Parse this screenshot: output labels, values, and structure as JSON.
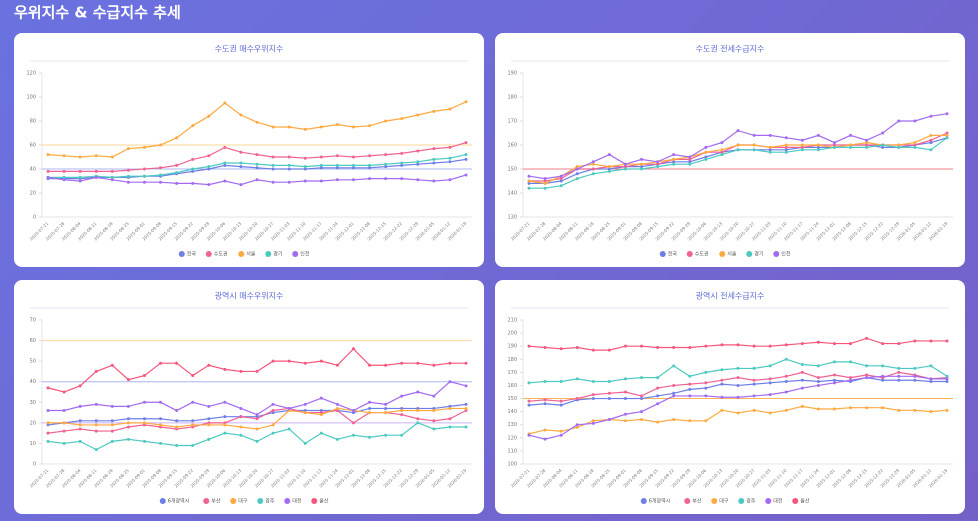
{
  "header": {
    "title": "우위지수 & 수급지수 추세"
  },
  "chart_data": [
    {
      "type": "line",
      "title": "수도권 매수우위지수",
      "categories": [
        "2025-07-21",
        "2025-07-28",
        "2025-08-04",
        "2025-08-11",
        "2025-08-18",
        "2025-08-25",
        "2025-09-01",
        "2025-09-08",
        "2025-09-15",
        "2025-09-22",
        "2025-09-29",
        "2025-10-06",
        "2025-10-13",
        "2025-10-20",
        "2025-10-27",
        "2025-11-03",
        "2025-11-10",
        "2025-11-17",
        "2025-11-24",
        "2025-12-01",
        "2025-12-08",
        "2025-12-15",
        "2025-12-22",
        "2025-12-29",
        "2026-01-05",
        "2026-01-12",
        "2026-01-19"
      ],
      "ylim": [
        0,
        120
      ],
      "yticks": [
        0,
        20,
        40,
        60,
        80,
        100,
        120
      ],
      "reference_lines": [
        {
          "value": 60,
          "color": "#ffd596"
        },
        {
          "value": 40,
          "color": "#a9b6f2"
        }
      ],
      "series": [
        {
          "name": "전국",
          "color": "#6d7fe6",
          "values": [
            32,
            32,
            32,
            33,
            33,
            33,
            34,
            34,
            36,
            38,
            40,
            43,
            42,
            41,
            40,
            40,
            40,
            41,
            41,
            41,
            41,
            42,
            43,
            44,
            45,
            46,
            48
          ]
        },
        {
          "name": "수도권",
          "color": "#f06292",
          "values": [
            38,
            38,
            38,
            38,
            38,
            39,
            40,
            41,
            43,
            48,
            51,
            58,
            54,
            52,
            50,
            50,
            49,
            50,
            51,
            50,
            51,
            52,
            53,
            55,
            57,
            58,
            62
          ]
        },
        {
          "name": "서울",
          "color": "#ffa940",
          "values": [
            52,
            51,
            50,
            51,
            50,
            57,
            58,
            60,
            66,
            76,
            84,
            95,
            85,
            79,
            75,
            75,
            73,
            75,
            77,
            75,
            76,
            80,
            82,
            85,
            88,
            90,
            96
          ]
        },
        {
          "name": "경기",
          "color": "#4cc9c0",
          "values": [
            33,
            33,
            33,
            34,
            33,
            34,
            34,
            35,
            37,
            40,
            42,
            45,
            45,
            44,
            43,
            43,
            42,
            43,
            43,
            43,
            43,
            44,
            45,
            46,
            48,
            49,
            52
          ]
        },
        {
          "name": "인천",
          "color": "#a26bf0",
          "values": [
            33,
            31,
            30,
            33,
            31,
            29,
            29,
            29,
            28,
            28,
            27,
            30,
            27,
            31,
            29,
            29,
            30,
            30,
            31,
            31,
            32,
            32,
            32,
            31,
            30,
            31,
            35
          ]
        }
      ]
    },
    {
      "type": "line",
      "title": "수도권 전세수급지수",
      "categories": [
        "2025-07-21",
        "2025-07-28",
        "2025-08-04",
        "2025-08-11",
        "2025-08-18",
        "2025-08-25",
        "2025-09-01",
        "2025-09-08",
        "2025-09-15",
        "2025-09-22",
        "2025-09-29",
        "2025-10-06",
        "2025-10-13",
        "2025-10-20",
        "2025-10-27",
        "2025-11-03",
        "2025-11-10",
        "2025-11-17",
        "2025-11-24",
        "2025-12-01",
        "2025-12-08",
        "2025-12-15",
        "2025-12-22",
        "2025-12-29",
        "2026-01-05",
        "2026-01-12",
        "2026-01-19"
      ],
      "ylim": [
        130,
        190
      ],
      "yticks": [
        130,
        140,
        150,
        160,
        170,
        180,
        190
      ],
      "reference_lines": [
        {
          "value": 150,
          "color": "#f57b8a"
        }
      ],
      "series": [
        {
          "name": "전국",
          "color": "#6d7fe6",
          "values": [
            144,
            144,
            145,
            148,
            150,
            150,
            151,
            151,
            152,
            153,
            153,
            155,
            157,
            158,
            158,
            158,
            158,
            159,
            159,
            159,
            160,
            160,
            159,
            159,
            160,
            161,
            163
          ]
        },
        {
          "name": "수도권",
          "color": "#f06292",
          "values": [
            145,
            145,
            146,
            150,
            150,
            151,
            151,
            152,
            152,
            154,
            154,
            157,
            157,
            160,
            160,
            159,
            159,
            159,
            160,
            160,
            160,
            160,
            160,
            160,
            160,
            162,
            165
          ]
        },
        {
          "name": "서울",
          "color": "#ffa940",
          "values": [
            145,
            144,
            147,
            151,
            152,
            151,
            152,
            152,
            153,
            154,
            155,
            157,
            158,
            160,
            160,
            159,
            160,
            160,
            160,
            159,
            160,
            161,
            160,
            160,
            161,
            164,
            164
          ]
        },
        {
          "name": "경기",
          "color": "#4cc9c0",
          "values": [
            142,
            142,
            143,
            146,
            148,
            149,
            150,
            150,
            151,
            152,
            152,
            154,
            156,
            158,
            158,
            157,
            157,
            158,
            158,
            159,
            159,
            159,
            160,
            159,
            159,
            158,
            163
          ]
        },
        {
          "name": "인천",
          "color": "#a26bf0",
          "values": [
            147,
            146,
            147,
            150,
            153,
            156,
            152,
            154,
            153,
            156,
            155,
            159,
            161,
            166,
            164,
            164,
            163,
            162,
            164,
            161,
            164,
            162,
            165,
            170,
            170,
            172,
            173
          ]
        }
      ]
    },
    {
      "type": "line",
      "title": "광역시 매수우위지수",
      "categories": [
        "2025-07-21",
        "2025-07-28",
        "2025-08-04",
        "2025-08-11",
        "2025-08-18",
        "2025-08-25",
        "2025-09-01",
        "2025-09-08",
        "2025-09-15",
        "2025-09-22",
        "2025-09-29",
        "2025-10-06",
        "2025-10-13",
        "2025-10-20",
        "2025-10-27",
        "2025-11-03",
        "2025-11-10",
        "2025-11-17",
        "2025-11-24",
        "2025-12-01",
        "2025-12-08",
        "2025-12-15",
        "2025-12-22",
        "2025-12-29",
        "2026-01-05",
        "2026-01-12",
        "2026-01-19"
      ],
      "ylim": [
        0,
        70
      ],
      "yticks": [
        0,
        10,
        20,
        30,
        40,
        50,
        60,
        70
      ],
      "reference_lines": [
        {
          "value": 60,
          "color": "#ffd596"
        },
        {
          "value": 40,
          "color": "#a9b6f2"
        },
        {
          "value": 20,
          "color": "#c9b0f5"
        }
      ],
      "series": [
        {
          "name": "6개광역시",
          "color": "#6d7fe6",
          "values": [
            19,
            20,
            21,
            21,
            21,
            22,
            22,
            22,
            21,
            21,
            22,
            23,
            23,
            23,
            25,
            26,
            26,
            26,
            26,
            25,
            27,
            27,
            27,
            27,
            27,
            28,
            29
          ]
        },
        {
          "name": "부산",
          "color": "#f06292",
          "values": [
            15,
            16,
            17,
            16,
            16,
            18,
            19,
            18,
            17,
            18,
            20,
            20,
            23,
            22,
            26,
            27,
            25,
            25,
            26,
            20,
            25,
            25,
            24,
            22,
            21,
            22,
            26
          ]
        },
        {
          "name": "대구",
          "color": "#ffa940",
          "values": [
            20,
            20,
            19,
            19,
            19,
            20,
            20,
            19,
            18,
            19,
            19,
            19,
            18,
            17,
            19,
            26,
            25,
            24,
            27,
            26,
            25,
            25,
            26,
            26,
            26,
            27,
            27
          ]
        },
        {
          "name": "광주",
          "color": "#4cc9c0",
          "values": [
            11,
            10,
            11,
            7,
            11,
            12,
            11,
            10,
            9,
            9,
            12,
            15,
            14,
            11,
            15,
            17,
            10,
            15,
            12,
            14,
            13,
            14,
            14,
            20,
            17,
            18,
            18
          ]
        },
        {
          "name": "대전",
          "color": "#a26bf0",
          "values": [
            26,
            26,
            28,
            29,
            28,
            28,
            30,
            30,
            26,
            30,
            28,
            30,
            27,
            24,
            29,
            27,
            29,
            32,
            29,
            26,
            30,
            29,
            33,
            35,
            33,
            40,
            38
          ]
        },
        {
          "name": "울산",
          "color": "#f5567a",
          "values": [
            37,
            35,
            38,
            45,
            48,
            41,
            43,
            49,
            49,
            43,
            48,
            46,
            45,
            45,
            50,
            50,
            49,
            50,
            48,
            56,
            48,
            48,
            49,
            49,
            48,
            49,
            49
          ]
        }
      ]
    },
    {
      "type": "line",
      "title": "광역시 전세수급지수",
      "categories": [
        "2025-07-21",
        "2025-07-28",
        "2025-08-04",
        "2025-08-11",
        "2025-08-18",
        "2025-08-25",
        "2025-09-01",
        "2025-09-08",
        "2025-09-15",
        "2025-09-22",
        "2025-09-29",
        "2025-10-06",
        "2025-10-13",
        "2025-10-20",
        "2025-10-27",
        "2025-11-03",
        "2025-11-10",
        "2025-11-17",
        "2025-11-24",
        "2025-12-01",
        "2025-12-08",
        "2025-12-15",
        "2025-12-22",
        "2025-12-29",
        "2026-01-05",
        "2026-01-12",
        "2026-01-19"
      ],
      "ylim": [
        100,
        210
      ],
      "yticks": [
        100,
        110,
        120,
        130,
        140,
        150,
        160,
        170,
        180,
        190,
        200,
        210
      ],
      "reference_lines": [
        {
          "value": 150,
          "color": "#ffb45c"
        }
      ],
      "series": [
        {
          "name": "6개광역시",
          "color": "#6d7fe6",
          "values": [
            145,
            146,
            145,
            149,
            150,
            150,
            150,
            150,
            152,
            154,
            157,
            158,
            161,
            160,
            161,
            162,
            163,
            164,
            163,
            164,
            163,
            166,
            164,
            164,
            164,
            163,
            163
          ]
        },
        {
          "name": "부산",
          "color": "#f06292",
          "values": [
            148,
            149,
            148,
            150,
            153,
            154,
            155,
            152,
            158,
            160,
            161,
            162,
            164,
            166,
            164,
            165,
            167,
            170,
            166,
            168,
            166,
            168,
            166,
            170,
            168,
            165,
            166
          ]
        },
        {
          "name": "대구",
          "color": "#ffa940",
          "values": [
            123,
            126,
            125,
            128,
            133,
            134,
            133,
            134,
            132,
            134,
            133,
            133,
            141,
            139,
            141,
            139,
            141,
            144,
            142,
            142,
            143,
            143,
            143,
            141,
            141,
            140,
            141
          ]
        },
        {
          "name": "광주",
          "color": "#4cc9c0",
          "values": [
            162,
            163,
            163,
            165,
            163,
            163,
            165,
            166,
            166,
            175,
            167,
            170,
            172,
            173,
            173,
            175,
            180,
            176,
            175,
            178,
            178,
            175,
            175,
            173,
            173,
            175,
            167
          ]
        },
        {
          "name": "대전",
          "color": "#a26bf0",
          "values": [
            122,
            119,
            122,
            130,
            131,
            134,
            138,
            140,
            146,
            152,
            152,
            152,
            151,
            151,
            152,
            153,
            155,
            158,
            160,
            162,
            164,
            166,
            167,
            167,
            167,
            165,
            165
          ]
        },
        {
          "name": "울산",
          "color": "#f5567a",
          "values": [
            190,
            189,
            188,
            189,
            187,
            187,
            190,
            190,
            189,
            189,
            189,
            190,
            191,
            191,
            190,
            190,
            191,
            192,
            193,
            192,
            192,
            196,
            192,
            192,
            194,
            194,
            194
          ]
        }
      ]
    }
  ]
}
